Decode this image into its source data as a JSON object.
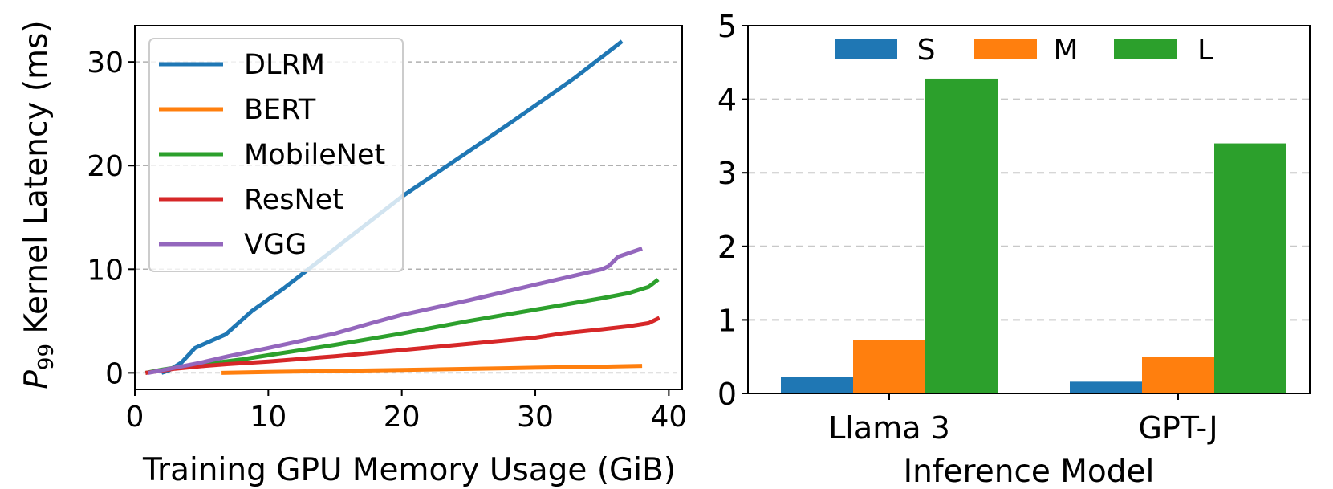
{
  "chart_data": [
    {
      "type": "line",
      "title": "",
      "xlabel": "Training GPU Memory Usage (GiB)",
      "ylabel_main": "P",
      "ylabel_sub": "99",
      "ylabel_rest": " Kernel Latency (ms)",
      "xlim": [
        0,
        41
      ],
      "ylim": [
        -1.6,
        33.5
      ],
      "xticks": [
        0,
        10,
        20,
        30,
        40
      ],
      "yticks": [
        0,
        10,
        20,
        30
      ],
      "grid": "horizontal-dashed",
      "legend_position": "upper-left",
      "series": [
        {
          "name": "DLRM",
          "color": "#1f77b4",
          "x": [
            2,
            2.5,
            3.5,
            4.5,
            6.8,
            8.8,
            11,
            14,
            17,
            20,
            24,
            28,
            33,
            36.5
          ],
          "y": [
            0,
            0.2,
            1,
            2.4,
            3.7,
            6,
            8,
            11,
            14,
            17,
            20.5,
            24,
            28.5,
            32
          ]
        },
        {
          "name": "BERT",
          "color": "#ff7f0e",
          "x": [
            6.5,
            10,
            15,
            20,
            25,
            30,
            35,
            38
          ],
          "y": [
            0,
            0.08,
            0.18,
            0.28,
            0.38,
            0.5,
            0.6,
            0.68
          ]
        },
        {
          "name": "MobileNet",
          "color": "#2ca02c",
          "x": [
            0.8,
            2,
            3,
            5,
            8,
            10,
            15,
            20,
            25,
            30,
            35,
            37,
            38.5,
            39.2
          ],
          "y": [
            0,
            0.3,
            0.5,
            0.8,
            1.3,
            1.7,
            2.7,
            3.8,
            5,
            6.1,
            7.2,
            7.7,
            8.3,
            9
          ]
        },
        {
          "name": "ResNet",
          "color": "#d62728",
          "x": [
            0.8,
            2,
            3,
            5,
            7,
            10,
            15,
            20,
            25,
            30,
            32,
            35,
            37,
            38.5,
            39.3
          ],
          "y": [
            0,
            0.2,
            0.4,
            0.65,
            0.85,
            1.1,
            1.6,
            2.2,
            2.8,
            3.4,
            3.8,
            4.2,
            4.5,
            4.8,
            5.3
          ]
        },
        {
          "name": "VGG",
          "color": "#9467bd",
          "x": [
            1,
            3,
            5,
            7,
            10,
            15,
            18,
            20,
            25,
            30,
            35,
            35.5,
            36.2,
            38
          ],
          "y": [
            0,
            0.5,
            1,
            1.6,
            2.4,
            3.8,
            4.9,
            5.6,
            7,
            8.5,
            10,
            10.3,
            11.2,
            12
          ]
        }
      ]
    },
    {
      "type": "bar",
      "title": "",
      "xlabel": "Inference Model",
      "ylabel": "",
      "categories": [
        "Llama 3",
        "GPT-J"
      ],
      "ylim": [
        0,
        5
      ],
      "yticks": [
        0,
        1,
        2,
        3,
        4,
        5
      ],
      "grid": "horizontal-dashed",
      "legend_position": "top-center",
      "series": [
        {
          "name": "S",
          "color": "#1f77b4",
          "values": [
            0.22,
            0.16
          ]
        },
        {
          "name": "M",
          "color": "#ff7f0e",
          "values": [
            0.73,
            0.5
          ]
        },
        {
          "name": "L",
          "color": "#2ca02c",
          "values": [
            4.28,
            3.4
          ]
        }
      ]
    }
  ]
}
